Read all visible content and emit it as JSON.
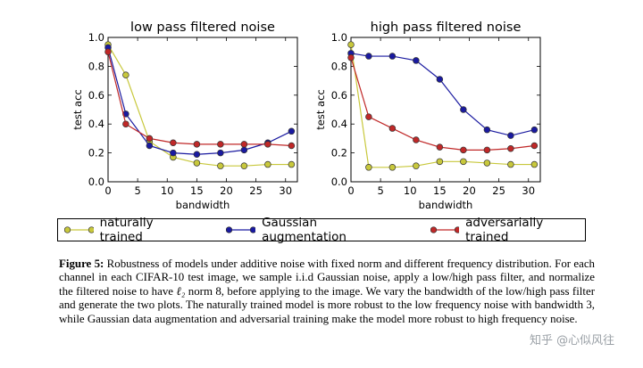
{
  "chart_data": [
    {
      "type": "line",
      "title": "low pass filtered noise",
      "xlabel": "bandwidth",
      "ylabel": "test acc",
      "xlim": [
        0,
        32
      ],
      "ylim": [
        0.0,
        1.0
      ],
      "xticks": [
        0,
        5,
        10,
        15,
        20,
        25,
        30
      ],
      "yticks": [
        0.0,
        0.2,
        0.4,
        0.6,
        0.8,
        1.0
      ],
      "x": [
        0,
        3,
        7,
        11,
        15,
        19,
        23,
        27,
        31
      ],
      "series": [
        {
          "name": "naturally trained",
          "values": [
            0.95,
            0.74,
            0.28,
            0.17,
            0.13,
            0.11,
            0.11,
            0.12,
            0.12
          ]
        },
        {
          "name": "Gaussian augmentation",
          "values": [
            0.93,
            0.47,
            0.25,
            0.2,
            0.19,
            0.2,
            0.22,
            0.27,
            0.35
          ]
        },
        {
          "name": "adversarially trained",
          "values": [
            0.9,
            0.4,
            0.3,
            0.27,
            0.26,
            0.26,
            0.26,
            0.26,
            0.25
          ]
        }
      ]
    },
    {
      "type": "line",
      "title": "high pass filtered noise",
      "xlabel": "bandwidth",
      "ylabel": "test acc",
      "xlim": [
        0,
        32
      ],
      "ylim": [
        0.0,
        1.0
      ],
      "xticks": [
        0,
        5,
        10,
        15,
        20,
        25,
        30
      ],
      "yticks": [
        0.0,
        0.2,
        0.4,
        0.6,
        0.8,
        1.0
      ],
      "x": [
        0,
        3,
        7,
        11,
        15,
        19,
        23,
        27,
        31
      ],
      "series": [
        {
          "name": "naturally trained",
          "values": [
            0.95,
            0.1,
            0.1,
            0.11,
            0.14,
            0.14,
            0.13,
            0.12,
            0.12
          ]
        },
        {
          "name": "Gaussian augmentation",
          "values": [
            0.89,
            0.87,
            0.87,
            0.84,
            0.71,
            0.5,
            0.36,
            0.32,
            0.36
          ]
        },
        {
          "name": "adversarially trained",
          "values": [
            0.86,
            0.45,
            0.37,
            0.29,
            0.24,
            0.22,
            0.22,
            0.23,
            0.25
          ]
        }
      ]
    }
  ],
  "colors": {
    "naturally trained": "#c8c83c",
    "Gaussian augmentation": "#1a1aa0",
    "adversarially trained": "#c02828"
  },
  "legend": {
    "natural": "naturally trained",
    "gaussian": "Gaussian augmentation",
    "adversarial": "adversarially trained"
  },
  "caption": {
    "label": "Figure 5:",
    "text_before_l2": " Robustness of models under additive noise with fixed norm and different frequency distribution. For each channel in each CIFAR-10 test image, we sample i.i.d Gaussian noise, apply a low/high pass filter, and normalize the filtered noise to have ",
    "l2": "ℓ₂",
    "text_after_l2": " norm 8, before applying to the image. We vary the bandwidth of the low/high pass filter and generate the two plots. The naturally trained model is more robust to the low frequency noise with bandwidth 3, while Gaussian data augmentation and adversarial training make the model more robust to high frequency noise."
  },
  "watermark": "知乎 @心似风往"
}
